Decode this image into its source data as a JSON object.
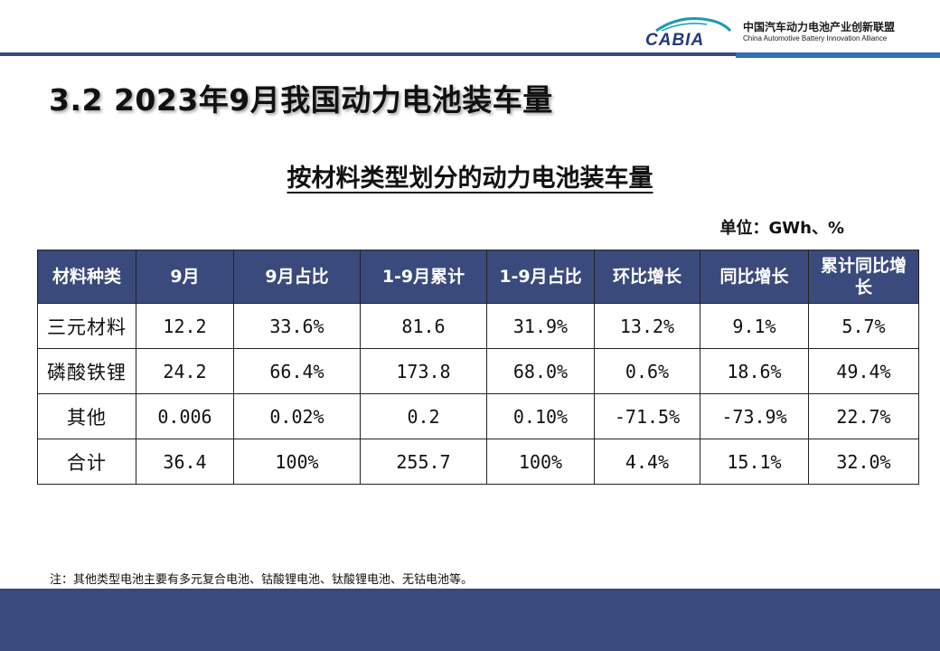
{
  "header": {
    "logo_text": "CABIA",
    "org_name_cn": "中国汽车动力电池产业创新联盟",
    "org_name_en": "China Automotive Battery Innovation Alliance"
  },
  "page_title": "3.2  2023年9月我国动力电池装车量",
  "table_title": "按材料类型划分的动力电池装车量",
  "unit": "单位：GWh、%",
  "table": {
    "headers": [
      "材料种类",
      "9月",
      "9月占比",
      "1-9月累计",
      "1-9月占比",
      "环比增长",
      "同比增长",
      "累计同比增长"
    ],
    "rows": [
      [
        "三元材料",
        "12.2",
        "33.6%",
        "81.6",
        "31.9%",
        "13.2%",
        "9.1%",
        "5.7%"
      ],
      [
        "磷酸铁锂",
        "24.2",
        "66.4%",
        "173.8",
        "68.0%",
        "0.6%",
        "18.6%",
        "49.4%"
      ],
      [
        "其他",
        "0.006",
        "0.02%",
        "0.2",
        "0.10%",
        "-71.5%",
        "-73.9%",
        "22.7%"
      ],
      [
        "合计",
        "36.4",
        "100%",
        "255.7",
        "100%",
        "4.4%",
        "15.1%",
        "32.0%"
      ]
    ]
  },
  "footnote": "注：其他类型电池主要有多元复合电池、钴酸锂电池、钛酸锂电池、无钴电池等。",
  "colors": {
    "header_fill": "#3a4a7c",
    "accent_blue": "#2f6fb8",
    "logo_teal": "#1a9bb0",
    "logo_navy": "#233a7a"
  }
}
